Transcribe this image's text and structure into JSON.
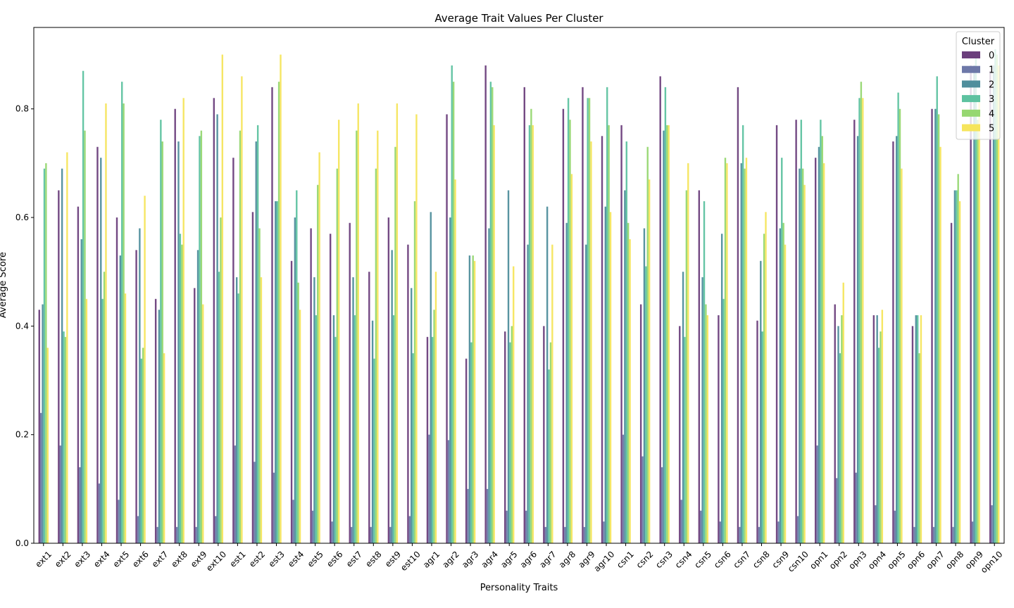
{
  "chart_data": {
    "type": "bar",
    "title": "Average Trait Values Per Cluster",
    "xlabel": "Personality Traits",
    "ylabel": "Average Score",
    "ylim": [
      0,
      0.95
    ],
    "yticks": [
      "0.0",
      "0.2",
      "0.4",
      "0.6",
      "0.8"
    ],
    "yticks_values": [
      0,
      0.2,
      0.4,
      0.6,
      0.8
    ],
    "grid": false,
    "legend": {
      "title": "Cluster",
      "placement": "top-right"
    },
    "categories": [
      "ext1",
      "ext2",
      "ext3",
      "ext4",
      "ext5",
      "ext6",
      "ext7",
      "ext8",
      "ext9",
      "ext10",
      "est1",
      "est2",
      "est3",
      "est4",
      "est5",
      "est6",
      "est7",
      "est8",
      "est9",
      "est10",
      "agr1",
      "agr2",
      "agr3",
      "agr4",
      "agr5",
      "agr6",
      "agr7",
      "agr8",
      "agr9",
      "agr10",
      "csn1",
      "csn2",
      "csn3",
      "csn4",
      "csn5",
      "csn6",
      "csn7",
      "csn8",
      "csn9",
      "csn10",
      "opn1",
      "opn2",
      "opn3",
      "opn4",
      "opn5",
      "opn6",
      "opn7",
      "opn8",
      "opn9",
      "opn10"
    ],
    "series": [
      {
        "name": "0",
        "color": "#6b3f7c",
        "values": [
          0.43,
          0.65,
          0.62,
          0.73,
          0.6,
          0.54,
          0.45,
          0.8,
          0.47,
          0.82,
          0.71,
          0.61,
          0.84,
          0.52,
          0.58,
          0.57,
          0.59,
          0.5,
          0.6,
          0.55,
          0.38,
          0.79,
          0.34,
          0.88,
          0.39,
          0.84,
          0.4,
          0.8,
          0.84,
          0.75,
          0.77,
          0.44,
          0.86,
          0.4,
          0.65,
          0.42,
          0.84,
          0.41,
          0.77,
          0.78,
          0.71,
          0.44,
          0.78,
          0.42,
          0.74,
          0.4,
          0.8,
          0.59,
          0.88,
          0.87
        ]
      },
      {
        "name": "1",
        "color": "#6d78a8",
        "values": [
          0.24,
          0.18,
          0.14,
          0.11,
          0.08,
          0.05,
          0.03,
          0.03,
          0.03,
          0.05,
          0.18,
          0.15,
          0.13,
          0.08,
          0.06,
          0.04,
          0.03,
          0.03,
          0.03,
          0.05,
          0.2,
          0.19,
          0.1,
          0.1,
          0.06,
          0.06,
          0.03,
          0.03,
          0.03,
          0.04,
          0.2,
          0.16,
          0.14,
          0.08,
          0.06,
          0.04,
          0.03,
          0.03,
          0.04,
          0.05,
          0.18,
          0.12,
          0.13,
          0.07,
          0.06,
          0.03,
          0.03,
          0.03,
          0.04,
          0.07
        ]
      },
      {
        "name": "2",
        "color": "#4f8e9c",
        "values": [
          0.44,
          0.69,
          0.56,
          0.71,
          0.53,
          0.58,
          0.43,
          0.74,
          0.54,
          0.79,
          0.49,
          0.74,
          0.63,
          0.6,
          0.49,
          0.42,
          0.49,
          0.41,
          0.54,
          0.47,
          0.61,
          0.6,
          0.53,
          0.58,
          0.65,
          0.55,
          0.62,
          0.59,
          0.55,
          0.62,
          0.65,
          0.58,
          0.76,
          0.5,
          0.49,
          0.57,
          0.7,
          0.52,
          0.58,
          0.69,
          0.73,
          0.4,
          0.75,
          0.42,
          0.75,
          0.42,
          0.8,
          0.65,
          0.88,
          0.88
        ]
      },
      {
        "name": "3",
        "color": "#5dc2a0",
        "values": [
          0.69,
          0.39,
          0.87,
          0.45,
          0.85,
          0.34,
          0.78,
          0.57,
          0.75,
          0.5,
          0.46,
          0.77,
          0.63,
          0.65,
          0.42,
          0.38,
          0.42,
          0.34,
          0.42,
          0.35,
          0.38,
          0.88,
          0.37,
          0.85,
          0.37,
          0.77,
          0.32,
          0.82,
          0.82,
          0.84,
          0.74,
          0.51,
          0.84,
          0.38,
          0.63,
          0.45,
          0.77,
          0.39,
          0.71,
          0.78,
          0.78,
          0.35,
          0.82,
          0.36,
          0.83,
          0.42,
          0.86,
          0.65,
          0.9,
          0.91
        ]
      },
      {
        "name": "4",
        "color": "#96d771",
        "values": [
          0.7,
          0.38,
          0.76,
          0.5,
          0.81,
          0.36,
          0.74,
          0.55,
          0.76,
          0.6,
          0.76,
          0.58,
          0.85,
          0.48,
          0.66,
          0.69,
          0.76,
          0.69,
          0.73,
          0.63,
          0.43,
          0.85,
          0.53,
          0.84,
          0.4,
          0.8,
          0.37,
          0.78,
          0.82,
          0.77,
          0.59,
          0.73,
          0.77,
          0.65,
          0.44,
          0.71,
          0.69,
          0.57,
          0.59,
          0.69,
          0.75,
          0.42,
          0.85,
          0.39,
          0.8,
          0.35,
          0.79,
          0.68,
          0.78,
          0.9
        ]
      },
      {
        "name": "5",
        "color": "#f6e55c",
        "values": [
          0.36,
          0.72,
          0.45,
          0.81,
          0.46,
          0.64,
          0.35,
          0.82,
          0.44,
          0.9,
          0.86,
          0.49,
          0.9,
          0.43,
          0.72,
          0.78,
          0.81,
          0.76,
          0.81,
          0.79,
          0.5,
          0.67,
          0.52,
          0.77,
          0.51,
          0.77,
          0.55,
          0.68,
          0.74,
          0.61,
          0.56,
          0.67,
          0.77,
          0.7,
          0.42,
          0.7,
          0.71,
          0.61,
          0.55,
          0.66,
          0.7,
          0.48,
          0.82,
          0.43,
          0.69,
          0.42,
          0.73,
          0.63,
          0.82,
          0.88
        ]
      }
    ]
  }
}
